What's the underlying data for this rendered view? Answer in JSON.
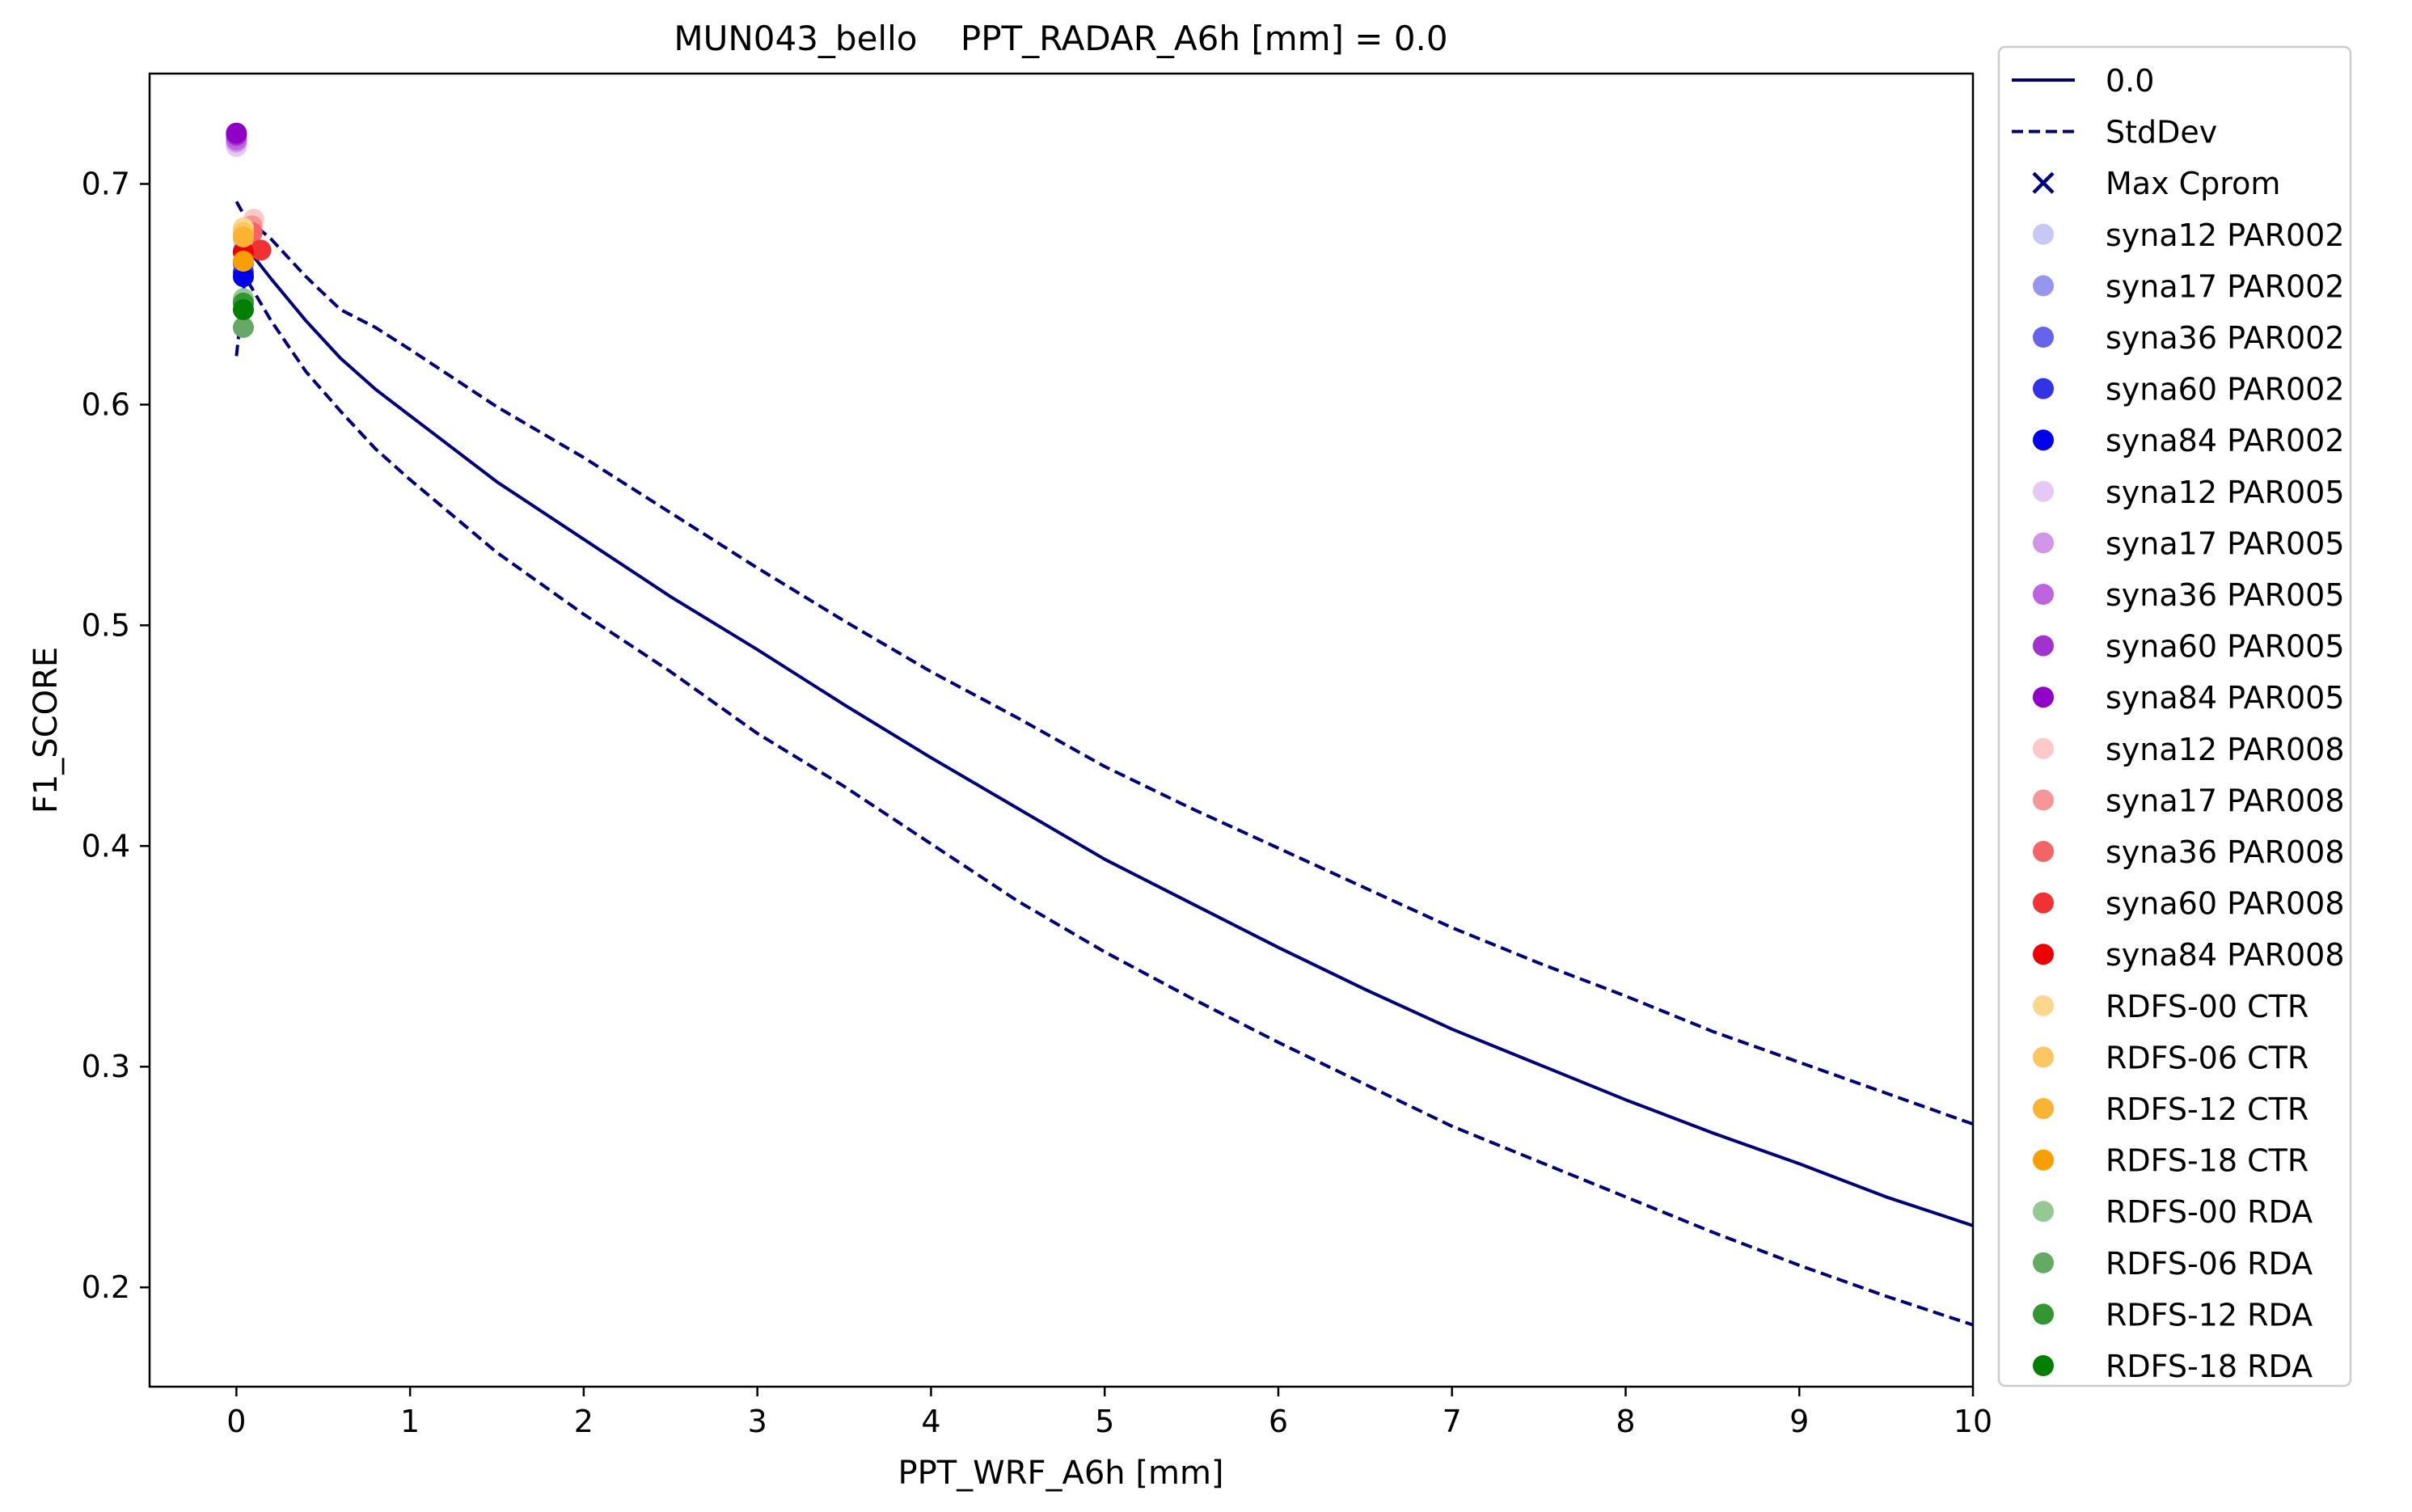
{
  "chart_data": {
    "type": "line",
    "title": "MUN043_bello    PPT_RADAR_A6h [mm] = 0.0",
    "xlabel": "PPT_WRF_A6h [mm]",
    "ylabel": "F1_SCORE",
    "xlim": [
      -0.5,
      10
    ],
    "ylim": [
      0.155,
      0.75
    ],
    "xticks": [
      0,
      1,
      2,
      3,
      4,
      5,
      6,
      7,
      8,
      9,
      10
    ],
    "yticks": [
      0.2,
      0.3,
      0.4,
      0.5,
      0.6,
      0.7
    ],
    "grid": false,
    "legend_position": "outside right",
    "lines": [
      {
        "name": "0.0",
        "style": "solid",
        "color": "#00007f",
        "x": [
          0,
          0.05,
          0.2,
          0.4,
          0.6,
          0.8,
          1,
          1.5,
          2,
          2.5,
          3,
          3.5,
          4,
          4.5,
          5,
          5.5,
          6,
          6.5,
          7,
          7.5,
          8,
          8.5,
          9,
          9.5,
          10
        ],
        "y": [
          0.659,
          0.672,
          0.657,
          0.638,
          0.621,
          0.607,
          0.595,
          0.565,
          0.539,
          0.513,
          0.489,
          0.464,
          0.44,
          0.417,
          0.394,
          0.374,
          0.354,
          0.335,
          0.317,
          0.301,
          0.285,
          0.27,
          0.256,
          0.241,
          0.228
        ]
      },
      {
        "name": "StdDev",
        "style": "dashed",
        "color": "#00007f",
        "x": [
          0,
          0.05,
          0.2,
          0.4,
          0.6,
          0.8,
          1,
          1.5,
          2,
          2.5,
          3,
          3.5,
          4,
          4.5,
          5,
          5.5,
          6,
          6.5,
          7,
          7.5,
          8,
          8.5,
          9,
          9.5,
          10
        ],
        "y": [
          0.692,
          0.685,
          0.675,
          0.658,
          0.643,
          0.635,
          0.625,
          0.599,
          0.576,
          0.551,
          0.526,
          0.502,
          0.479,
          0.458,
          0.436,
          0.417,
          0.399,
          0.381,
          0.363,
          0.347,
          0.332,
          0.316,
          0.302,
          0.288,
          0.274
        ]
      },
      {
        "name": "StdDev-lower",
        "style": "dashed",
        "color": "#00007f",
        "x": [
          0,
          0.05,
          0.2,
          0.4,
          0.6,
          0.8,
          1,
          1.5,
          2,
          2.5,
          3,
          3.5,
          4,
          4.5,
          5,
          5.5,
          6,
          6.5,
          7,
          7.5,
          8,
          8.5,
          9,
          9.5,
          10
        ],
        "y": [
          0.622,
          0.658,
          0.638,
          0.615,
          0.597,
          0.58,
          0.566,
          0.533,
          0.505,
          0.479,
          0.451,
          0.427,
          0.401,
          0.375,
          0.352,
          0.331,
          0.311,
          0.292,
          0.273,
          0.257,
          0.241,
          0.225,
          0.21,
          0.196,
          0.183
        ]
      }
    ],
    "points": [
      {
        "name": "syna12 PAR002",
        "color": "#c8c8f4",
        "x": 0.04,
        "y": 0.675
      },
      {
        "name": "syna17 PAR002",
        "color": "#9696ef",
        "x": 0.04,
        "y": 0.67
      },
      {
        "name": "syna36 PAR002",
        "color": "#6464ec",
        "x": 0.04,
        "y": 0.664
      },
      {
        "name": "syna60 PAR002",
        "color": "#3232e6",
        "x": 0.04,
        "y": 0.66
      },
      {
        "name": "syna84 PAR002",
        "color": "#0000ee",
        "x": 0.04,
        "y": 0.658
      },
      {
        "name": "syna12 PAR005",
        "color": "#e6c8f4",
        "x": 0.0,
        "y": 0.717
      },
      {
        "name": "syna17 PAR005",
        "color": "#d296e8",
        "x": 0.0,
        "y": 0.719
      },
      {
        "name": "syna36 PAR005",
        "color": "#be64de",
        "x": 0.0,
        "y": 0.72
      },
      {
        "name": "syna60 PAR005",
        "color": "#a032d0",
        "x": 0.0,
        "y": 0.722
      },
      {
        "name": "syna84 PAR005",
        "color": "#9000c8",
        "x": 0.0,
        "y": 0.723
      },
      {
        "name": "syna12 PAR008",
        "color": "#fcc8c8",
        "x": 0.1,
        "y": 0.684
      },
      {
        "name": "syna17 PAR008",
        "color": "#f79696",
        "x": 0.09,
        "y": 0.681
      },
      {
        "name": "syna36 PAR008",
        "color": "#f56464",
        "x": 0.09,
        "y": 0.678
      },
      {
        "name": "syna60 PAR008",
        "color": "#f03232",
        "x": 0.14,
        "y": 0.67
      },
      {
        "name": "syna84 PAR008",
        "color": "#ee0000",
        "x": 0.04,
        "y": 0.669
      },
      {
        "name": "RDFS-00 CTR",
        "color": "#fdd78c",
        "x": 0.04,
        "y": 0.68
      },
      {
        "name": "RDFS-06 CTR",
        "color": "#fcc661",
        "x": 0.04,
        "y": 0.678
      },
      {
        "name": "RDFS-12 CTR",
        "color": "#fbb432",
        "x": 0.04,
        "y": 0.676
      },
      {
        "name": "RDFS-18 CTR",
        "color": "#fa9f00",
        "x": 0.04,
        "y": 0.665
      },
      {
        "name": "RDFS-00 RDA",
        "color": "#96c896",
        "x": 0.04,
        "y": 0.648
      },
      {
        "name": "RDFS-06 RDA",
        "color": "#64aa64",
        "x": 0.04,
        "y": 0.635
      },
      {
        "name": "RDFS-12 RDA",
        "color": "#329632",
        "x": 0.04,
        "y": 0.646
      },
      {
        "name": "RDFS-18 RDA",
        "color": "#007f00",
        "x": 0.04,
        "y": 0.643
      }
    ],
    "legend": [
      {
        "label": "0.0",
        "kind": "line-solid",
        "color": "#00007f"
      },
      {
        "label": "StdDev",
        "kind": "line-dashed",
        "color": "#00007f"
      },
      {
        "label": "Max Cprom",
        "kind": "cross",
        "color": "#00007f"
      },
      {
        "label": "syna12 PAR002",
        "kind": "dot",
        "color": "#c8c8f4"
      },
      {
        "label": "syna17 PAR002",
        "kind": "dot",
        "color": "#9696ef"
      },
      {
        "label": "syna36 PAR002",
        "kind": "dot",
        "color": "#6464ec"
      },
      {
        "label": "syna60 PAR002",
        "kind": "dot",
        "color": "#3232e6"
      },
      {
        "label": "syna84 PAR002",
        "kind": "dot",
        "color": "#0000ee"
      },
      {
        "label": "syna12 PAR005",
        "kind": "dot",
        "color": "#e6c8f4"
      },
      {
        "label": "syna17 PAR005",
        "kind": "dot",
        "color": "#d296e8"
      },
      {
        "label": "syna36 PAR005",
        "kind": "dot",
        "color": "#be64de"
      },
      {
        "label": "syna60 PAR005",
        "kind": "dot",
        "color": "#a032d0"
      },
      {
        "label": "syna84 PAR005",
        "kind": "dot",
        "color": "#9000c8"
      },
      {
        "label": "syna12 PAR008",
        "kind": "dot",
        "color": "#fcc8c8"
      },
      {
        "label": "syna17 PAR008",
        "kind": "dot",
        "color": "#f79696"
      },
      {
        "label": "syna36 PAR008",
        "kind": "dot",
        "color": "#f56464"
      },
      {
        "label": "syna60 PAR008",
        "kind": "dot",
        "color": "#f03232"
      },
      {
        "label": "syna84 PAR008",
        "kind": "dot",
        "color": "#ee0000"
      },
      {
        "label": " RDFS-00 CTR",
        "kind": "dot",
        "color": "#fdd78c"
      },
      {
        "label": " RDFS-06 CTR",
        "kind": "dot",
        "color": "#fcc661"
      },
      {
        "label": " RDFS-12 CTR",
        "kind": "dot",
        "color": "#fbb432"
      },
      {
        "label": " RDFS-18 CTR",
        "kind": "dot",
        "color": "#fa9f00"
      },
      {
        "label": " RDFS-00 RDA",
        "kind": "dot",
        "color": "#96c896"
      },
      {
        "label": " RDFS-06 RDA",
        "kind": "dot",
        "color": "#64aa64"
      },
      {
        "label": " RDFS-12 RDA",
        "kind": "dot",
        "color": "#329632"
      },
      {
        "label": " RDFS-18 RDA",
        "kind": "dot",
        "color": "#007f00"
      }
    ]
  }
}
